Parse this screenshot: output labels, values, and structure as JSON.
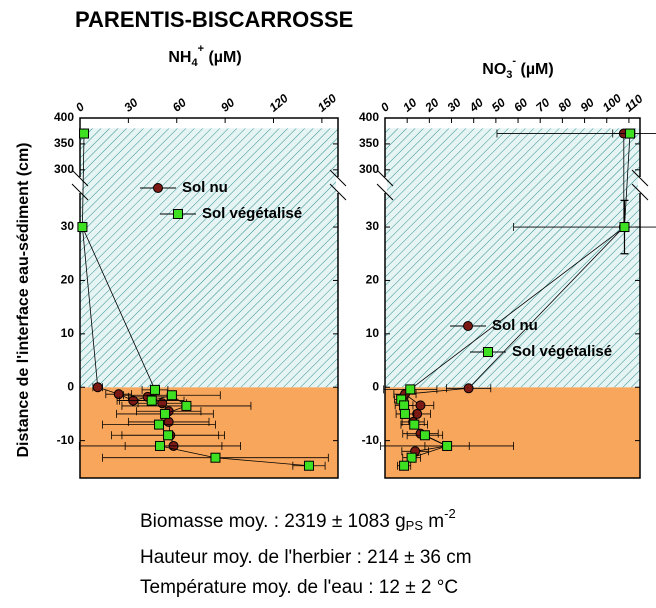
{
  "title": "PARENTIS-BISCARROSSE",
  "y_label": "Distance de l'interface eau-sédiment (cm)",
  "footer": [
    {
      "text": "Biomasse moy. : 2319 ± 1083 g",
      "sub": "PS",
      "mid": " m",
      "sup": "-2"
    },
    {
      "text": "Hauteur moy. de l'herbier : 214 ± 36 cm"
    },
    {
      "text": "Température moy. de l'eau : 12 ± 2 °C"
    }
  ],
  "chart_data": [
    {
      "type": "scatter",
      "xlabel": {
        "base": "NH",
        "sub": "4",
        "sup": "+",
        "unit": " (µM)"
      },
      "xlim": [
        0,
        160
      ],
      "xticks": [
        0,
        30,
        60,
        90,
        120,
        150
      ],
      "ylim_segments": [
        [
          -17,
          36
        ],
        [
          290,
          400
        ]
      ],
      "yticks": [
        -10,
        0,
        10,
        20,
        30,
        300,
        350,
        400
      ],
      "water_level": 380,
      "legend": "upper-center",
      "series": [
        {
          "name": "Sol nu",
          "color": "#7b1a14",
          "x": [
            1.5,
            11,
            24,
            33,
            42,
            51,
            55,
            55,
            56,
            58
          ],
          "values": [
            30,
            0,
            -1.3,
            -2.5,
            -1.8,
            -3,
            -4.5,
            -6.5,
            -9,
            -11
          ],
          "xerr": [
            1,
            3,
            8,
            10,
            12,
            15,
            20,
            25,
            30,
            30
          ]
        },
        {
          "name": "Sol végétalisé",
          "color": "#3ee022",
          "x": [
            2.5,
            1.5,
            46.5,
            44.5,
            57,
            66,
            52.7,
            49,
            54.6,
            49.6,
            84,
            142
          ],
          "values": [
            370,
            30,
            -0.5,
            -2.5,
            -1.5,
            -3.5,
            -5,
            -7,
            -9,
            -11,
            -13.2,
            -14.7
          ],
          "xerr": [
            1,
            1,
            8,
            20,
            30,
            40,
            30,
            35,
            35,
            50,
            70,
            10
          ]
        }
      ]
    },
    {
      "type": "scatter",
      "xlabel": {
        "base": "NO",
        "sub": "3",
        "sup": "-",
        "unit": " (µM)"
      },
      "xlim": [
        0,
        115
      ],
      "xticks": [
        0,
        10,
        20,
        30,
        40,
        50,
        60,
        70,
        80,
        90,
        100,
        110
      ],
      "ylim_segments": [
        [
          -17,
          36
        ],
        [
          290,
          400
        ]
      ],
      "yticks": [
        -10,
        0,
        10,
        20,
        30,
        300,
        350,
        400
      ],
      "water_level": 380,
      "legend": "center-right",
      "series": [
        {
          "name": "Sol nu",
          "color": "#7b1a14",
          "x": [
            107.7,
            107.7,
            37.7,
            9,
            16,
            14.5,
            12.7,
            16,
            28,
            13.6
          ],
          "values": [
            370,
            30,
            -0.2,
            -1.3,
            -3.4,
            -5,
            -6.5,
            -8.7,
            -11,
            -12
          ],
          "xerr": [
            5,
            1,
            10,
            5,
            6,
            6,
            5,
            8,
            10,
            6
          ]
        },
        {
          "name": "Sol végétalisé",
          "color": "#3ee022",
          "x": [
            110.5,
            108,
            11.4,
            7.3,
            8.6,
            9,
            13.2,
            18,
            28,
            12,
            8.6
          ],
          "values": [
            370,
            30,
            -0.4,
            -2.3,
            -3.4,
            -5,
            -7,
            -9,
            -11,
            -13.2,
            -14.7
          ],
          "xerr": [
            60,
            50,
            12,
            3,
            4,
            4,
            6,
            8,
            30,
            4,
            3
          ],
          "yerr": [
            null,
            5,
            null,
            null,
            null,
            null,
            null,
            null,
            null,
            null,
            null
          ]
        }
      ]
    }
  ]
}
